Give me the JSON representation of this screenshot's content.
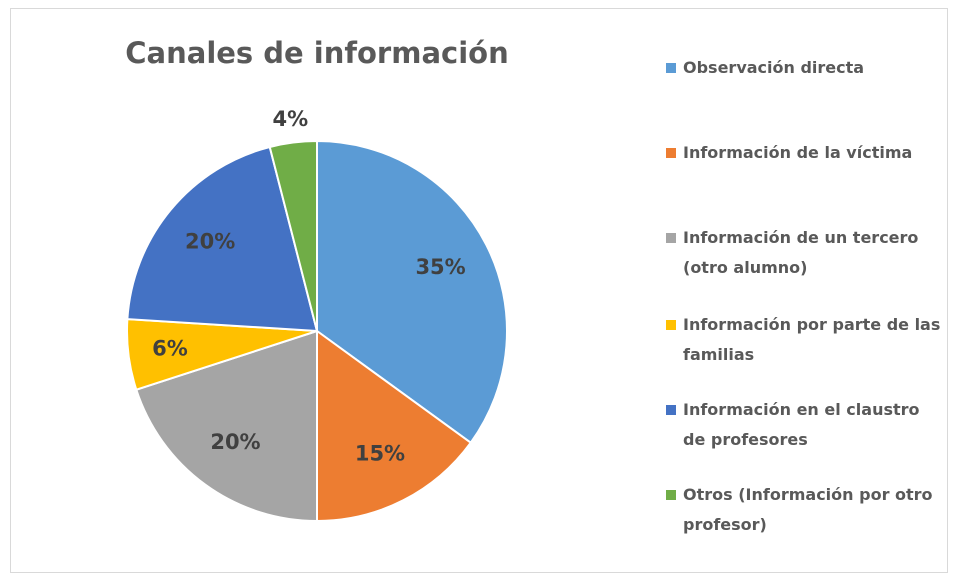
{
  "chart_data": {
    "type": "pie",
    "title": "Canales de información",
    "categories": [
      "Observación directa",
      "Información de la víctima",
      "Información de un tercero (otro alumno)",
      "Información por parte de las familias",
      "Información en el claustro de profesores",
      "Otros (Información por otro profesor)"
    ],
    "values": [
      35,
      15,
      20,
      6,
      20,
      4
    ],
    "value_labels": [
      "35%",
      "15%",
      "20%",
      "6%",
      "20%",
      "4%"
    ],
    "colors": [
      "#5b9bd5",
      "#ed7d31",
      "#a5a5a5",
      "#ffc000",
      "#4472c4",
      "#70ad47"
    ],
    "legend": "right"
  }
}
